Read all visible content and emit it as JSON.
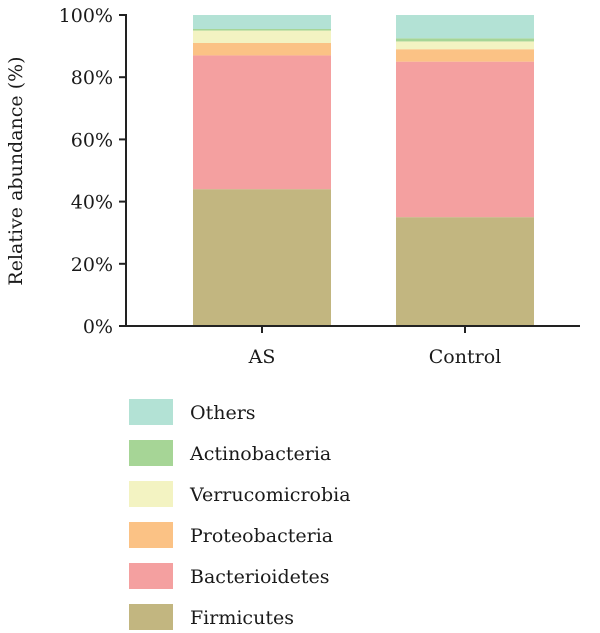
{
  "chart_data": {
    "type": "bar",
    "stacked": true,
    "ylabel": "Relative abundance (%)",
    "ylim": [
      0,
      100
    ],
    "yticks": [
      "0%",
      "20%",
      "40%",
      "60%",
      "80%",
      "100%"
    ],
    "categories": [
      "AS",
      "Control"
    ],
    "series": [
      {
        "name": "Firmicutes",
        "color": "#c2b680",
        "values": [
          44,
          35
        ]
      },
      {
        "name": "Bacterioidetes",
        "color": "#f4a0a0",
        "values": [
          43,
          50
        ]
      },
      {
        "name": "Proteobacteria",
        "color": "#fbc285",
        "values": [
          4,
          4
        ]
      },
      {
        "name": "Verrucomicrobia",
        "color": "#f3f3c2",
        "values": [
          4,
          2.5
        ]
      },
      {
        "name": "Actinobacteria",
        "color": "#a6d596",
        "values": [
          0.5,
          1
        ]
      },
      {
        "name": "Others",
        "color": "#b3e2d5",
        "values": [
          4.5,
          7.5
        ]
      }
    ],
    "legend_order": [
      "Others",
      "Actinobacteria",
      "Verrucomicrobia",
      "Proteobacteria",
      "Bacterioidetes",
      "Firmicutes"
    ],
    "legend_position": "bottom",
    "grid": false
  }
}
